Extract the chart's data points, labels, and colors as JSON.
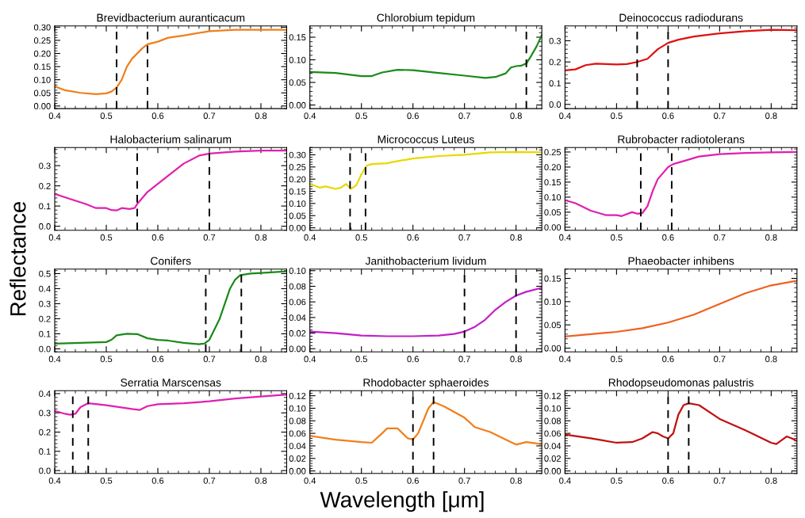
{
  "chart_data": [
    {
      "type": "line",
      "title": "Brevidbacterium auranticacum",
      "color": "#f07f1a",
      "x": [
        0.4,
        0.42,
        0.45,
        0.48,
        0.5,
        0.51,
        0.52,
        0.53,
        0.54,
        0.55,
        0.56,
        0.57,
        0.58,
        0.6,
        0.62,
        0.65,
        0.7,
        0.75,
        0.8,
        0.85
      ],
      "values": [
        0.075,
        0.06,
        0.05,
        0.045,
        0.048,
        0.055,
        0.07,
        0.1,
        0.15,
        0.18,
        0.2,
        0.22,
        0.235,
        0.245,
        0.26,
        0.268,
        0.285,
        0.29,
        0.29,
        0.29
      ],
      "xlim": [
        0.4,
        0.85
      ],
      "xticks": [
        0.4,
        0.5,
        0.6,
        0.7,
        0.8
      ],
      "ylim": [
        -0.01,
        0.305
      ],
      "yticks": [
        {
          "value": 0,
          "label": "0.00"
        },
        {
          "value": 0.05,
          "label": "0.05"
        },
        {
          "value": 0.1,
          "label": "0.10"
        },
        {
          "value": 0.15,
          "label": "0.15"
        },
        {
          "value": 0.2,
          "label": "0.20"
        },
        {
          "value": 0.25,
          "label": "0.25"
        },
        {
          "value": 0.3,
          "label": "0.30"
        }
      ],
      "ref_lines": [
        {
          "axis": "x",
          "value": 0.52,
          "color": "#000000",
          "line_style": "dashed"
        },
        {
          "axis": "x",
          "value": 0.58,
          "color": "#000000",
          "line_style": "dashed"
        }
      ]
    },
    {
      "type": "line",
      "title": "Chlorobium tepidum",
      "color": "#1a8a1a",
      "x": [
        0.4,
        0.45,
        0.5,
        0.52,
        0.54,
        0.57,
        0.6,
        0.65,
        0.7,
        0.74,
        0.76,
        0.78,
        0.79,
        0.8,
        0.81,
        0.82,
        0.83,
        0.84,
        0.85
      ],
      "values": [
        0.073,
        0.071,
        0.064,
        0.064,
        0.072,
        0.078,
        0.077,
        0.071,
        0.065,
        0.06,
        0.062,
        0.07,
        0.083,
        0.086,
        0.087,
        0.092,
        0.11,
        0.13,
        0.155
      ],
      "xlim": [
        0.4,
        0.85
      ],
      "xticks": [
        0.4,
        0.5,
        0.6,
        0.7,
        0.8
      ],
      "ylim": [
        -0.008,
        0.175
      ],
      "yticks": [
        {
          "value": 0,
          "label": "0.00"
        },
        {
          "value": 0.05,
          "label": "0.05"
        },
        {
          "value": 0.1,
          "label": "0.10"
        },
        {
          "value": 0.15,
          "label": "0.15"
        }
      ],
      "ref_lines": [
        {
          "axis": "x",
          "value": 0.82,
          "color": "#000000",
          "line_style": "dashed"
        }
      ]
    },
    {
      "type": "line",
      "title": "Deinococcus radiodurans",
      "color": "#e01010",
      "x": [
        0.4,
        0.42,
        0.44,
        0.46,
        0.48,
        0.5,
        0.52,
        0.54,
        0.56,
        0.58,
        0.6,
        0.62,
        0.65,
        0.7,
        0.75,
        0.8,
        0.85
      ],
      "values": [
        0.16,
        0.165,
        0.185,
        0.192,
        0.19,
        0.188,
        0.19,
        0.2,
        0.215,
        0.26,
        0.29,
        0.305,
        0.32,
        0.335,
        0.345,
        0.352,
        0.35
      ],
      "xlim": [
        0.4,
        0.85
      ],
      "xticks": [
        0.4,
        0.5,
        0.6,
        0.7,
        0.8
      ],
      "ylim": [
        -0.02,
        0.37
      ],
      "yticks": [
        {
          "value": 0,
          "label": "0.0"
        },
        0.1,
        0.2,
        0.3
      ],
      "ref_lines": [
        {
          "axis": "x",
          "value": 0.54,
          "color": "#000000",
          "line_style": "dashed"
        },
        {
          "axis": "x",
          "value": 0.6,
          "color": "#000000",
          "line_style": "dashed"
        }
      ]
    },
    {
      "type": "line",
      "title": "Halobacterium salinarum",
      "ylabel": "Reflectance",
      "color": "#e020b0",
      "x": [
        0.4,
        0.43,
        0.46,
        0.48,
        0.5,
        0.51,
        0.52,
        0.53,
        0.545,
        0.555,
        0.56,
        0.58,
        0.6,
        0.62,
        0.65,
        0.68,
        0.7,
        0.75,
        0.8,
        0.85
      ],
      "values": [
        0.16,
        0.135,
        0.11,
        0.09,
        0.09,
        0.08,
        0.078,
        0.09,
        0.085,
        0.09,
        0.11,
        0.17,
        0.21,
        0.25,
        0.31,
        0.35,
        0.36,
        0.37,
        0.375,
        0.375
      ],
      "xlim": [
        0.4,
        0.85
      ],
      "xticks": [
        0.4,
        0.5,
        0.6,
        0.7,
        0.8
      ],
      "ylim": [
        -0.02,
        0.39
      ],
      "yticks": [
        {
          "value": 0,
          "label": "0.0"
        },
        0.1,
        0.2,
        0.3
      ],
      "ref_lines": [
        {
          "axis": "x",
          "value": 0.56,
          "color": "#000000",
          "line_style": "dashed"
        },
        {
          "axis": "x",
          "value": 0.7,
          "color": "#000000",
          "line_style": "dashed"
        }
      ]
    },
    {
      "type": "line",
      "title": "Micrococcus Luteus",
      "color": "#e8d800",
      "x": [
        0.4,
        0.42,
        0.43,
        0.44,
        0.45,
        0.46,
        0.47,
        0.48,
        0.49,
        0.5,
        0.51,
        0.52,
        0.55,
        0.56,
        0.6,
        0.65,
        0.7,
        0.75,
        0.8,
        0.85
      ],
      "values": [
        0.18,
        0.165,
        0.17,
        0.165,
        0.16,
        0.165,
        0.18,
        0.16,
        0.175,
        0.22,
        0.255,
        0.262,
        0.265,
        0.27,
        0.285,
        0.295,
        0.3,
        0.31,
        0.312,
        0.31
      ],
      "xlim": [
        0.4,
        0.85
      ],
      "xticks": [
        0.4,
        0.5,
        0.6,
        0.7,
        0.8
      ],
      "ylim": [
        -0.01,
        0.33
      ],
      "yticks": [
        {
          "value": 0,
          "label": "0.00"
        },
        {
          "value": 0.05,
          "label": "0.05"
        },
        {
          "value": 0.1,
          "label": "0.10"
        },
        {
          "value": 0.15,
          "label": "0.15"
        },
        {
          "value": 0.2,
          "label": "0.20"
        },
        {
          "value": 0.25,
          "label": "0.25"
        },
        {
          "value": 0.3,
          "label": "0.30"
        }
      ],
      "ref_lines": [
        {
          "axis": "x",
          "value": 0.478,
          "color": "#000000",
          "line_style": "dashed"
        },
        {
          "axis": "x",
          "value": 0.508,
          "color": "#000000",
          "line_style": "dashed"
        }
      ]
    },
    {
      "type": "line",
      "title": "Rubrobacter radiotolerans",
      "color": "#e020b0",
      "x": [
        0.4,
        0.42,
        0.45,
        0.48,
        0.5,
        0.51,
        0.53,
        0.54,
        0.55,
        0.56,
        0.57,
        0.58,
        0.6,
        0.61,
        0.63,
        0.66,
        0.7,
        0.75,
        0.8,
        0.85
      ],
      "values": [
        0.09,
        0.08,
        0.055,
        0.04,
        0.04,
        0.037,
        0.05,
        0.045,
        0.047,
        0.07,
        0.12,
        0.16,
        0.2,
        0.21,
        0.22,
        0.235,
        0.243,
        0.247,
        0.249,
        0.25
      ],
      "xlim": [
        0.4,
        0.85
      ],
      "xticks": [
        0.4,
        0.5,
        0.6,
        0.7,
        0.8
      ],
      "ylim": [
        -0.01,
        0.265
      ],
      "yticks": [
        {
          "value": 0,
          "label": "0.00"
        },
        {
          "value": 0.05,
          "label": "0.05"
        },
        {
          "value": 0.1,
          "label": "0.10"
        },
        {
          "value": 0.15,
          "label": "0.15"
        },
        {
          "value": 0.2,
          "label": "0.20"
        },
        {
          "value": 0.25,
          "label": "0.25"
        }
      ],
      "ref_lines": [
        {
          "axis": "x",
          "value": 0.547,
          "color": "#000000",
          "line_style": "dashed"
        },
        {
          "axis": "x",
          "value": 0.607,
          "color": "#000000",
          "line_style": "dashed"
        }
      ]
    },
    {
      "type": "line",
      "title": "Conifers",
      "color": "#1a8a1a",
      "x": [
        0.4,
        0.45,
        0.5,
        0.51,
        0.52,
        0.54,
        0.56,
        0.58,
        0.6,
        0.62,
        0.65,
        0.68,
        0.69,
        0.7,
        0.72,
        0.74,
        0.75,
        0.76,
        0.78,
        0.8,
        0.85
      ],
      "values": [
        0.035,
        0.04,
        0.045,
        0.06,
        0.09,
        0.1,
        0.098,
        0.07,
        0.06,
        0.055,
        0.04,
        0.03,
        0.035,
        0.06,
        0.2,
        0.4,
        0.46,
        0.49,
        0.5,
        0.505,
        0.515
      ],
      "xlim": [
        0.4,
        0.85
      ],
      "xticks": [
        0.4,
        0.5,
        0.6,
        0.7,
        0.8
      ],
      "ylim": [
        -0.02,
        0.53
      ],
      "yticks": [
        {
          "value": 0,
          "label": "0.0"
        },
        0.1,
        0.2,
        0.3,
        0.4,
        0.5
      ],
      "ref_lines": [
        {
          "axis": "x",
          "value": 0.693,
          "color": "#000000",
          "line_style": "dashed"
        },
        {
          "axis": "x",
          "value": 0.762,
          "color": "#000000",
          "line_style": "dashed"
        }
      ]
    },
    {
      "type": "line",
      "title": "Janithobacterium lividum",
      "color": "#c020c8",
      "x": [
        0.4,
        0.45,
        0.5,
        0.55,
        0.6,
        0.65,
        0.68,
        0.7,
        0.72,
        0.74,
        0.76,
        0.78,
        0.8,
        0.82,
        0.85
      ],
      "values": [
        0.022,
        0.02,
        0.017,
        0.016,
        0.016,
        0.017,
        0.019,
        0.022,
        0.028,
        0.037,
        0.05,
        0.06,
        0.068,
        0.073,
        0.078
      ],
      "xlim": [
        0.4,
        0.85
      ],
      "xticks": [
        0.4,
        0.5,
        0.6,
        0.7,
        0.8
      ],
      "ylim": [
        -0.004,
        0.102
      ],
      "yticks": [
        {
          "value": 0,
          "label": "0.00"
        },
        {
          "value": 0.02,
          "label": "0.02"
        },
        {
          "value": 0.04,
          "label": "0.04"
        },
        {
          "value": 0.06,
          "label": "0.06"
        },
        {
          "value": 0.08,
          "label": "0.08"
        },
        {
          "value": 0.1,
          "label": "0.10"
        }
      ],
      "ref_lines": [
        {
          "axis": "x",
          "value": 0.7,
          "color": "#000000",
          "line_style": "dashed"
        },
        {
          "axis": "x",
          "value": 0.8,
          "color": "#000000",
          "line_style": "dashed"
        }
      ]
    },
    {
      "type": "line",
      "title": "Phaeobacter inhibens",
      "color": "#f06020",
      "x": [
        0.4,
        0.45,
        0.5,
        0.55,
        0.6,
        0.65,
        0.7,
        0.75,
        0.8,
        0.85
      ],
      "values": [
        0.025,
        0.03,
        0.035,
        0.043,
        0.055,
        0.072,
        0.095,
        0.118,
        0.135,
        0.145
      ],
      "xlim": [
        0.4,
        0.85
      ],
      "xticks": [
        0.4,
        0.5,
        0.6,
        0.7,
        0.8
      ],
      "ylim": [
        -0.008,
        0.17
      ],
      "yticks": [
        {
          "value": 0,
          "label": "0.00"
        },
        {
          "value": 0.05,
          "label": "0.05"
        },
        {
          "value": 0.1,
          "label": "0.10"
        },
        {
          "value": 0.15,
          "label": "0.15"
        }
      ]
    },
    {
      "type": "line",
      "title": "Serratia Marscensas",
      "color": "#e020b0",
      "x": [
        0.4,
        0.42,
        0.43,
        0.44,
        0.45,
        0.465,
        0.5,
        0.55,
        0.565,
        0.58,
        0.6,
        0.65,
        0.7,
        0.75,
        0.8,
        0.85
      ],
      "values": [
        0.31,
        0.295,
        0.29,
        0.295,
        0.33,
        0.35,
        0.34,
        0.32,
        0.315,
        0.335,
        0.345,
        0.35,
        0.36,
        0.375,
        0.385,
        0.395
      ],
      "xlim": [
        0.4,
        0.85
      ],
      "xticks": [
        0.4,
        0.5,
        0.6,
        0.7,
        0.8
      ],
      "ylim": [
        -0.015,
        0.415
      ],
      "yticks": [
        {
          "value": 0,
          "label": "0.0"
        },
        0.1,
        0.2,
        0.3,
        0.4
      ],
      "ref_lines": [
        {
          "axis": "x",
          "value": 0.435,
          "color": "#000000",
          "line_style": "dashed"
        },
        {
          "axis": "x",
          "value": 0.465,
          "color": "#000000",
          "line_style": "dashed"
        }
      ]
    },
    {
      "type": "line",
      "title": "Rhodobacter sphaeroides",
      "xlabel": "Wavelength [μm]",
      "color": "#f07f1a",
      "x": [
        0.4,
        0.45,
        0.5,
        0.52,
        0.54,
        0.55,
        0.57,
        0.58,
        0.59,
        0.6,
        0.61,
        0.63,
        0.64,
        0.66,
        0.7,
        0.72,
        0.75,
        0.78,
        0.8,
        0.82,
        0.84,
        0.85
      ],
      "values": [
        0.056,
        0.05,
        0.046,
        0.045,
        0.06,
        0.068,
        0.068,
        0.06,
        0.052,
        0.05,
        0.06,
        0.1,
        0.11,
        0.103,
        0.085,
        0.07,
        0.062,
        0.05,
        0.042,
        0.046,
        0.044,
        0.042
      ],
      "xlim": [
        0.4,
        0.85
      ],
      "xticks": [
        0.4,
        0.5,
        0.6,
        0.7,
        0.8
      ],
      "ylim": [
        -0.004,
        0.128
      ],
      "yticks": [
        {
          "value": 0,
          "label": "0.00"
        },
        {
          "value": 0.02,
          "label": "0.02"
        },
        {
          "value": 0.04,
          "label": "0.04"
        },
        {
          "value": 0.06,
          "label": "0.06"
        },
        {
          "value": 0.08,
          "label": "0.08"
        },
        {
          "value": 0.1,
          "label": "0.10"
        },
        {
          "value": 0.12,
          "label": "0.12"
        }
      ],
      "ref_lines": [
        {
          "axis": "x",
          "value": 0.6,
          "color": "#000000",
          "line_style": "dashed"
        },
        {
          "axis": "x",
          "value": 0.64,
          "color": "#000000",
          "line_style": "dashed"
        }
      ]
    },
    {
      "type": "line",
      "title": "Rhodopseudomonas palustris",
      "color": "#c01010",
      "x": [
        0.4,
        0.45,
        0.5,
        0.53,
        0.55,
        0.57,
        0.58,
        0.59,
        0.6,
        0.61,
        0.62,
        0.63,
        0.64,
        0.66,
        0.7,
        0.75,
        0.8,
        0.81,
        0.83,
        0.84,
        0.85
      ],
      "values": [
        0.058,
        0.052,
        0.045,
        0.046,
        0.052,
        0.062,
        0.06,
        0.055,
        0.052,
        0.06,
        0.09,
        0.105,
        0.108,
        0.105,
        0.083,
        0.065,
        0.045,
        0.043,
        0.055,
        0.052,
        0.048
      ],
      "xlim": [
        0.4,
        0.85
      ],
      "xticks": [
        0.4,
        0.5,
        0.6,
        0.7,
        0.8
      ],
      "ylim": [
        -0.004,
        0.128
      ],
      "yticks": [
        {
          "value": 0,
          "label": "0.00"
        },
        {
          "value": 0.02,
          "label": "0.02"
        },
        {
          "value": 0.04,
          "label": "0.04"
        },
        {
          "value": 0.06,
          "label": "0.06"
        },
        {
          "value": 0.08,
          "label": "0.08"
        },
        {
          "value": 0.1,
          "label": "0.10"
        },
        {
          "value": 0.12,
          "label": "0.12"
        }
      ],
      "ref_lines": [
        {
          "axis": "x",
          "value": 0.6,
          "color": "#000000",
          "line_style": "dashed"
        },
        {
          "axis": "x",
          "value": 0.64,
          "color": "#000000",
          "line_style": "dashed"
        }
      ]
    }
  ]
}
